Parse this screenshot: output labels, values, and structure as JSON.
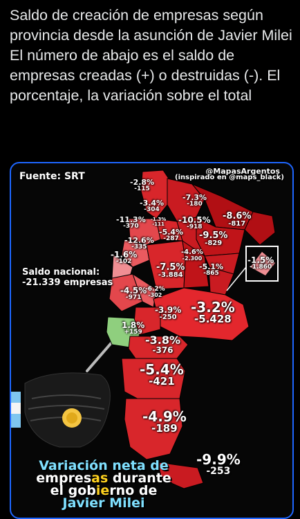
{
  "post": {
    "line1": "Saldo de creación de empresas según provincia desde la asunción de Javier Milei",
    "line2": "El número de abajo es el saldo de empresas creadas (+) o destruidas (-). El porcentaje, la variación sobre el total"
  },
  "map": {
    "source": "Fuente: SRT",
    "credit_handle": "@MapasArgentos",
    "credit_inspired": "(inspirado en @maps_black)",
    "national_label": "Saldo nacional:",
    "national_value": "-21.339 empresas",
    "title_line1": "Variación neta de",
    "title_line2_a": "empres",
    "title_line2_b": "as",
    "title_line2_c": " durante",
    "title_line3_a": "el gob",
    "title_line3_b": "ie",
    "title_line3_c": "rno de",
    "title_line4": "Javier Milei",
    "provinces": [
      {
        "pct": "-2.8%",
        "num": "-115"
      },
      {
        "pct": "-7.3%",
        "num": "-180"
      },
      {
        "pct": "-3.4%",
        "num": "-304"
      },
      {
        "pct": "-8.6%",
        "num": "-817"
      },
      {
        "pct": "-11.3%",
        "num": "-370"
      },
      {
        "pct": "-1.3%",
        "num": "-111"
      },
      {
        "pct": "-10.5%",
        "num": "-918"
      },
      {
        "pct": "-5.4%",
        "num": "-287"
      },
      {
        "pct": "-9.5%",
        "num": "-829"
      },
      {
        "pct": "-12.6%",
        "num": "-335"
      },
      {
        "pct": "-4.6%",
        "num": "-2.300"
      },
      {
        "pct": "-1.6%",
        "num": "-102"
      },
      {
        "pct": "-7.5%",
        "num": "-3.884"
      },
      {
        "pct": "-5.1%",
        "num": "-865"
      },
      {
        "pct": "-1.5%",
        "num": "-1.860"
      },
      {
        "pct": "-4.5%",
        "num": "-971"
      },
      {
        "pct": "-6.2%",
        "num": "-302"
      },
      {
        "pct": "-3.9%",
        "num": "-250"
      },
      {
        "pct": "-3.2%",
        "num": "-5.428"
      },
      {
        "pct": "1.8%",
        "num": "+159"
      },
      {
        "pct": "-3.8%",
        "num": "-376"
      },
      {
        "pct": "-5.4%",
        "num": "-421"
      },
      {
        "pct": "-4.9%",
        "num": "-189"
      },
      {
        "pct": "-9.9%",
        "num": "-253"
      }
    ],
    "colors": {
      "dark_red": "#b10f14",
      "red": "#d8262b",
      "light_red": "#ea5a5f",
      "pink": "#f08e93",
      "green": "#8fcf7e",
      "frame": "#1e66ff"
    }
  }
}
